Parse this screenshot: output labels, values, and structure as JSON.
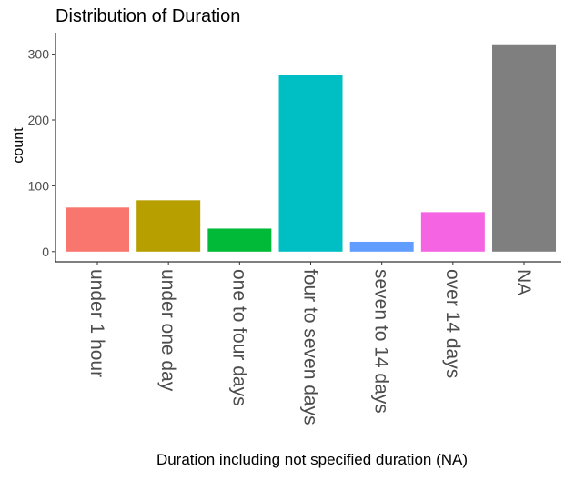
{
  "chart_data": {
    "type": "bar",
    "title": "Distribution of Duration",
    "xlabel": "Duration including not specified duration (NA)",
    "ylabel": "count",
    "categories": [
      "under 1 hour",
      "under one day",
      "one to four days",
      "four to seven days",
      "seven to 14 days",
      "over 14 days",
      "NA"
    ],
    "values": [
      67,
      78,
      35,
      268,
      15,
      60,
      315
    ],
    "colors": [
      "#F8766D",
      "#B79F00",
      "#00BA38",
      "#00BFC4",
      "#619CFF",
      "#F564E3",
      "#7F7F7F"
    ],
    "yticks": [
      0,
      100,
      200,
      300
    ],
    "ylim": [
      0,
      330
    ],
    "grid": false,
    "legend": "none"
  }
}
